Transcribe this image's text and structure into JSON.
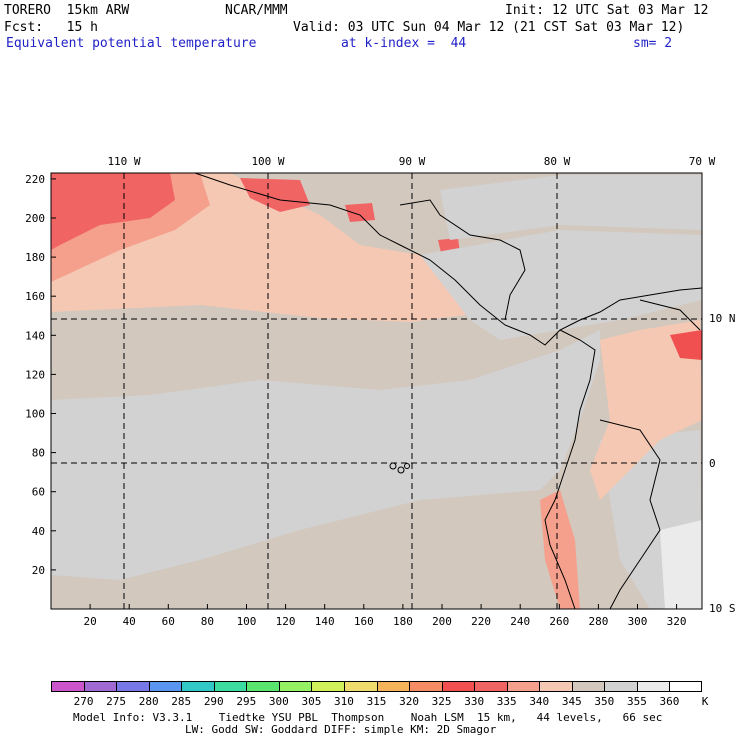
{
  "header": {
    "model": "TORERO  15km ARW",
    "org": "NCAR/MMM",
    "init": "Init: 12 UTC Sat 03 Mar 12",
    "fcst": "Fcst:   15 h",
    "valid": "Valid: 03 UTC Sun 04 Mar 12 (21 CST Sat 03 Mar 12)",
    "field": "Equivalent potential temperature",
    "level": "at k-index =  44",
    "smooth": "sm= 2"
  },
  "axes": {
    "x_ticks": [
      "20",
      "40",
      "60",
      "80",
      "100",
      "120",
      "140",
      "160",
      "180",
      "200",
      "220",
      "240",
      "260",
      "280",
      "300",
      "320"
    ],
    "y_ticks": [
      "20",
      "40",
      "60",
      "80",
      "100",
      "120",
      "140",
      "160",
      "180",
      "200",
      "220"
    ],
    "lon_labels": [
      "110 W",
      "100 W",
      "90 W",
      "80 W",
      "70 W"
    ],
    "lat_labels": [
      "10 N",
      "0",
      "10 S"
    ]
  },
  "colorbar": {
    "labels": [
      "270",
      "275",
      "280",
      "285",
      "290",
      "295",
      "300",
      "305",
      "310",
      "315",
      "320",
      "325",
      "330",
      "335",
      "340",
      "345",
      "350",
      "355",
      "360"
    ],
    "unit": "K",
    "colors": [
      "#cc55cc",
      "#a06ad2",
      "#7878e6",
      "#5a96f0",
      "#32c8c8",
      "#3cdca0",
      "#5ae66e",
      "#96f064",
      "#d2f05a",
      "#f0dc6e",
      "#f5b45a",
      "#f58c64",
      "#f05050",
      "#f06464",
      "#f5a08c",
      "#f5c8b4",
      "#d2c8be",
      "#d2d2d2",
      "#ebebeb",
      "#ffffff"
    ]
  },
  "footer": {
    "line1": "Model Info: V3.3.1    Tiedtke YSU PBL  Thompson    Noah LSM  15 km,   44 levels,   66 sec",
    "line2": "LW: Godd SW: Goddard DIFF: simple KM: 2D Smagor"
  }
}
